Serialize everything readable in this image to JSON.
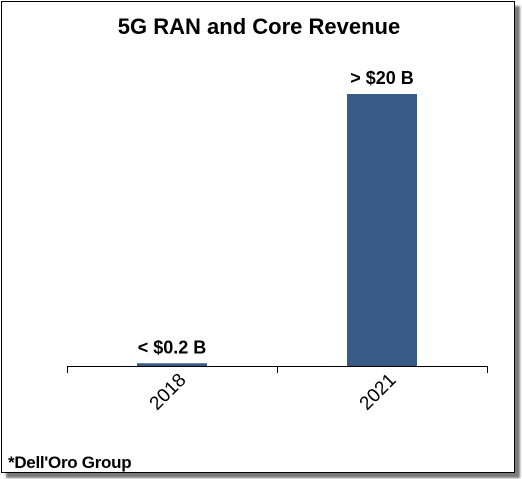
{
  "chart_data": {
    "type": "bar",
    "title": "5G RAN and Core Revenue",
    "categories": [
      "2018",
      "2021"
    ],
    "values": [
      0.2,
      20
    ],
    "data_labels": [
      "< $0.2 B",
      "> $20 B"
    ],
    "unit": "$B",
    "bar_color": "#375A86",
    "xlabel": "",
    "ylabel": "",
    "ylim": [
      0,
      20
    ],
    "grid": false,
    "legend": "none"
  },
  "source_note": "*Dell'Oro Group"
}
